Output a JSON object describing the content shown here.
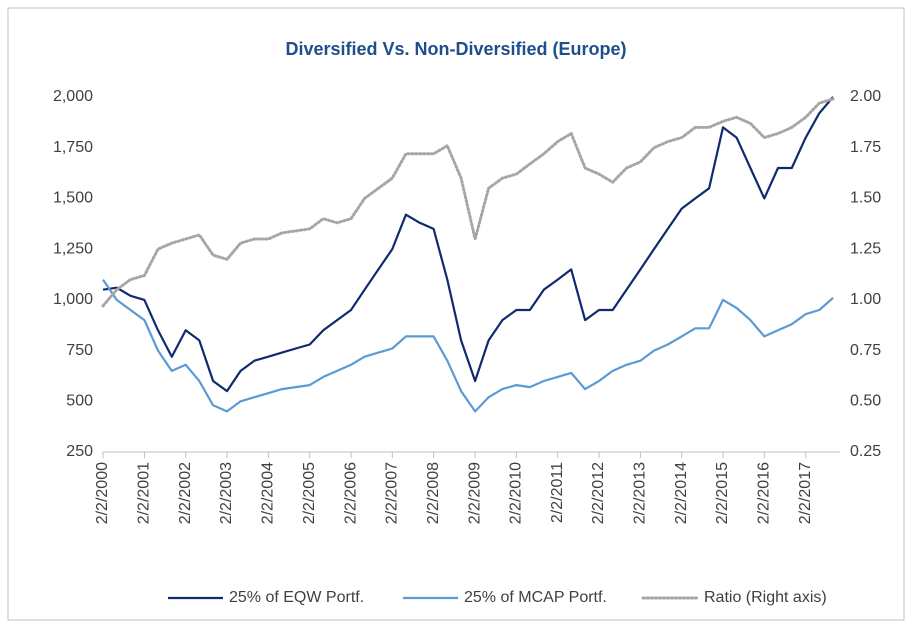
{
  "chart_data": {
    "type": "line",
    "title": "Diversified Vs. Non-Diversified (Europe)",
    "x": [
      "2000-02-02",
      "2000-06-02",
      "2000-10-02",
      "2001-02-02",
      "2001-06-02",
      "2001-10-02",
      "2002-02-02",
      "2002-06-02",
      "2002-10-02",
      "2003-02-02",
      "2003-06-02",
      "2003-10-02",
      "2004-02-02",
      "2004-06-02",
      "2004-10-02",
      "2005-02-02",
      "2005-06-02",
      "2005-10-02",
      "2006-02-02",
      "2006-06-02",
      "2006-10-02",
      "2007-02-02",
      "2007-06-02",
      "2007-10-02",
      "2008-02-02",
      "2008-06-02",
      "2008-10-02",
      "2009-02-02",
      "2009-06-02",
      "2009-10-02",
      "2010-02-02",
      "2010-06-02",
      "2010-10-02",
      "2011-02-02",
      "2011-06-02",
      "2011-10-02",
      "2012-02-02",
      "2012-06-02",
      "2012-10-02",
      "2013-02-02",
      "2013-06-02",
      "2013-10-02",
      "2014-02-02",
      "2014-06-02",
      "2014-10-02",
      "2015-02-02",
      "2015-06-02",
      "2015-10-02",
      "2016-02-02",
      "2016-06-02",
      "2016-10-02",
      "2017-02-02",
      "2017-06-02",
      "2017-10-02"
    ],
    "series": [
      {
        "name": "25% of EQW Portf.",
        "color": "#0f2a6e",
        "style": "solid",
        "values": [
          1050,
          1060,
          1020,
          1000,
          850,
          720,
          850,
          800,
          600,
          550,
          650,
          700,
          720,
          740,
          760,
          780,
          850,
          900,
          950,
          1050,
          1150,
          1250,
          1420,
          1380,
          1350,
          1100,
          800,
          600,
          800,
          900,
          950,
          950,
          1050,
          1100,
          1150,
          900,
          950,
          950,
          1050,
          1150,
          1250,
          1350,
          1450,
          1500,
          1550,
          1850,
          1800,
          1650,
          1500,
          1650,
          1650,
          1800,
          1920,
          2000
        ]
      },
      {
        "name": "25% of MCAP Portf.",
        "color": "#5b9bd5",
        "style": "solid",
        "values": [
          1100,
          1000,
          950,
          900,
          750,
          650,
          680,
          600,
          480,
          450,
          500,
          520,
          540,
          560,
          570,
          580,
          620,
          650,
          680,
          720,
          740,
          760,
          820,
          820,
          820,
          700,
          550,
          450,
          520,
          560,
          580,
          570,
          600,
          620,
          640,
          560,
          600,
          650,
          680,
          700,
          750,
          780,
          820,
          860,
          860,
          1000,
          960,
          900,
          820,
          850,
          880,
          930,
          950,
          1010
        ]
      },
      {
        "name": "Ratio (Right axis)",
        "color": "#a6a6a6",
        "style": "dotted",
        "axis": "y2",
        "values": [
          0.97,
          1.05,
          1.1,
          1.12,
          1.25,
          1.28,
          1.3,
          1.32,
          1.22,
          1.2,
          1.28,
          1.3,
          1.3,
          1.33,
          1.34,
          1.35,
          1.4,
          1.38,
          1.4,
          1.5,
          1.55,
          1.6,
          1.72,
          1.72,
          1.72,
          1.76,
          1.6,
          1.3,
          1.55,
          1.6,
          1.62,
          1.67,
          1.72,
          1.78,
          1.82,
          1.65,
          1.62,
          1.58,
          1.65,
          1.68,
          1.75,
          1.78,
          1.8,
          1.85,
          1.85,
          1.88,
          1.9,
          1.87,
          1.8,
          1.82,
          1.85,
          1.9,
          1.97,
          1.99
        ]
      }
    ],
    "xlim": [
      "2000-02-02",
      "2017-12-02"
    ],
    "xticks": [
      {
        "value": "2000-02-02",
        "label": "2/2/2000"
      },
      {
        "value": "2001-02-02",
        "label": "2/2/2001"
      },
      {
        "value": "2002-02-02",
        "label": "2/2/2002"
      },
      {
        "value": "2003-02-02",
        "label": "2/2/2003"
      },
      {
        "value": "2004-02-02",
        "label": "2/2/2004"
      },
      {
        "value": "2005-02-02",
        "label": "2/2/2005"
      },
      {
        "value": "2006-02-02",
        "label": "2/2/2006"
      },
      {
        "value": "2007-02-02",
        "label": "2/2/2007"
      },
      {
        "value": "2008-02-02",
        "label": "2/2/2008"
      },
      {
        "value": "2009-02-02",
        "label": "2/2/2009"
      },
      {
        "value": "2010-02-02",
        "label": "2/2/2010"
      },
      {
        "value": "2011-02-02",
        "label": "2/2/2011"
      },
      {
        "value": "2012-02-02",
        "label": "2/2/2012"
      },
      {
        "value": "2013-02-02",
        "label": "2/2/2013"
      },
      {
        "value": "2014-02-02",
        "label": "2/2/2014"
      },
      {
        "value": "2015-02-02",
        "label": "2/2/2015"
      },
      {
        "value": "2016-02-02",
        "label": "2/2/2016"
      },
      {
        "value": "2017-02-02",
        "label": "2/2/2017"
      }
    ],
    "ylim": [
      250,
      2000
    ],
    "yticks": [
      250,
      500,
      750,
      {
        "value": 1000,
        "label": "1,000"
      },
      {
        "value": 1250,
        "label": "1,250"
      },
      {
        "value": 1500,
        "label": "1,500"
      },
      {
        "value": 1750,
        "label": "1,750"
      },
      {
        "value": 2000,
        "label": "2,000"
      }
    ],
    "y2lim": [
      0.25,
      2
    ],
    "y2ticks": [
      0.25,
      {
        "value": 0.5,
        "label": "0.50"
      },
      0.75,
      {
        "value": 1,
        "label": "1.00"
      },
      1.25,
      {
        "value": 1.5,
        "label": "1.50"
      },
      1.75,
      {
        "value": 2,
        "label": "2.00"
      }
    ],
    "legend": "bottom"
  }
}
